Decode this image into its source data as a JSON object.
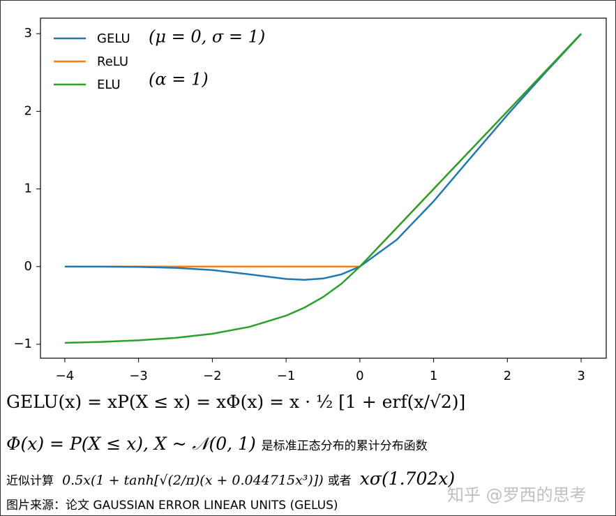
{
  "chart_data": {
    "type": "line",
    "x": [
      -4,
      -3.5,
      -3,
      -2.5,
      -2,
      -1.5,
      -1,
      -0.75,
      -0.5,
      -0.25,
      0,
      0.5,
      1,
      1.5,
      2,
      2.5,
      3
    ],
    "series": [
      {
        "name": "GELU",
        "color": "#1f77b4",
        "values": [
          -0.0001,
          -0.0008,
          -0.004,
          -0.016,
          -0.045,
          -0.1,
          -0.159,
          -0.17,
          -0.154,
          -0.1,
          0,
          0.346,
          0.841,
          1.4,
          1.954,
          2.484,
          2.996
        ]
      },
      {
        "name": "ReLU",
        "color": "#ff7f0e",
        "values": [
          0,
          0,
          0,
          0,
          0,
          0,
          0,
          0,
          0,
          0,
          0,
          0.5,
          1,
          1.5,
          2,
          2.5,
          3
        ]
      },
      {
        "name": "ELU",
        "color": "#2ca02c",
        "values": [
          -0.982,
          -0.97,
          -0.95,
          -0.918,
          -0.865,
          -0.777,
          -0.632,
          -0.528,
          -0.393,
          -0.221,
          0,
          0.5,
          1,
          1.5,
          2,
          2.5,
          3
        ]
      }
    ],
    "annotations": [
      "(μ = 0, σ = 1)",
      "(α = 1)"
    ],
    "xlim": [
      -4.33,
      3.34
    ],
    "ylim": [
      -1.18,
      3.2
    ],
    "xticks": [
      {
        "value": -4,
        "label": "−4"
      },
      {
        "value": -3,
        "label": "−3"
      },
      {
        "value": -2,
        "label": "−2"
      },
      {
        "value": -1,
        "label": "−1"
      },
      0,
      1,
      2,
      3
    ],
    "yticks": [
      {
        "value": -1,
        "label": "−1"
      },
      0,
      1,
      2,
      3
    ],
    "legend": "upper left",
    "grid": false
  },
  "formulas": {
    "gelu": "GELU(x) = xP(X ≤ x) = xΦ(x) = x · ½ [1 + erf(x/√2)]",
    "phi": "Φ(x) = P(X ≤ x), X ~ 𝒩(0, 1)",
    "phi_note": "是标准正态分布的累计分布函数",
    "approx_label": "近似计算",
    "approx": "0.5x(1 + tanh[√(2/π)(x + 0.044715x³)])",
    "or": "或者",
    "approx2": "xσ(1.702x)",
    "source": "图片来源：论文 GAUSSIAN ERROR LINEAR UNITS (GELUS)",
    "watermark": "知乎 @罗西的思考"
  }
}
